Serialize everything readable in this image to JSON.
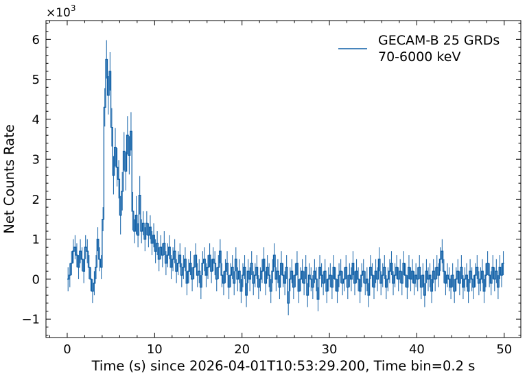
{
  "chart_data": {
    "type": "line",
    "style": "step-with-errorbars",
    "xlabel": "Time (s) since 2026-04-01T10:53:29.200, Time bin=0.2 s",
    "ylabel": "Net Counts Rate",
    "y_multiplier_label": "×10",
    "y_multiplier_exponent": "3",
    "xlim": [
      -2.43,
      51.9
    ],
    "ylim": [
      -1.46,
      6.47
    ],
    "xticks": [
      0,
      10,
      20,
      30,
      40,
      50
    ],
    "xtick_labels": [
      "0",
      "10",
      "20",
      "30",
      "40",
      "50"
    ],
    "yticks": [
      -1,
      0,
      1,
      2,
      3,
      4,
      5,
      6
    ],
    "ytick_labels": [
      "−1",
      "0",
      "1",
      "2",
      "3",
      "4",
      "5",
      "6"
    ],
    "grid": false,
    "legend": {
      "placement": "top-right",
      "entries": [
        {
          "line1": "GECAM-B 25 GRDs",
          "line2": "70-6000 keV"
        }
      ]
    },
    "color": "#0c5da5",
    "bin_width": 0.2,
    "x_start": 0,
    "units_note": "rate values in units of 10^3 counts/s",
    "yerr": 0.3,
    "series": [
      {
        "name": "GECAM-B 25 GRDs 70-6000 keV",
        "values": [
          0.0,
          0.1,
          0.4,
          0.7,
          0.8,
          0.6,
          0.3,
          0.7,
          0.5,
          0.2,
          0.8,
          0.7,
          0.3,
          0.0,
          -0.3,
          -0.1,
          0.3,
          1.0,
          0.5,
          0.3,
          1.5,
          4.3,
          5.5,
          4.6,
          5.2,
          3.8,
          2.6,
          3.3,
          2.8,
          2.5,
          1.6,
          2.2,
          3.2,
          2.7,
          3.6,
          3.1,
          3.7,
          1.7,
          1.2,
          1.6,
          1.1,
          2.1,
          1.2,
          1.4,
          1.0,
          1.4,
          1.1,
          1.3,
          0.9,
          1.1,
          0.7,
          0.9,
          0.5,
          0.8,
          0.6,
          0.9,
          0.4,
          0.6,
          0.8,
          0.3,
          0.5,
          0.7,
          0.2,
          0.4,
          0.6,
          0.1,
          0.3,
          0.5,
          -0.1,
          0.2,
          0.4,
          0.0,
          0.3,
          0.6,
          0.1,
          0.2,
          -0.2,
          0.4,
          0.5,
          0.1,
          0.3,
          0.6,
          0.2,
          0.5,
          0.4,
          0.0,
          0.3,
          0.7,
          0.1,
          -0.1,
          0.2,
          0.4,
          -0.2,
          0.1,
          0.3,
          -0.1,
          0.5,
          0.0,
          0.2,
          -0.3,
          0.1,
          0.3,
          -0.4,
          0.2,
          0.0,
          0.4,
          -0.1,
          0.1,
          0.3,
          -0.2,
          0.0,
          0.2,
          0.5,
          -0.1,
          0.3,
          0.1,
          -0.3,
          0.2,
          0.6,
          0.0,
          0.2,
          -0.2,
          0.4,
          0.1,
          -0.1,
          0.3,
          -0.6,
          0.0,
          0.2,
          -0.2,
          0.1,
          0.4,
          -0.3,
          0.0,
          0.2,
          -0.1,
          0.3,
          -0.4,
          0.1,
          0.0,
          -0.2,
          0.2,
          0.0,
          -0.5,
          0.3,
          0.1,
          -0.1,
          0.2,
          -0.3,
          0.0,
          0.1,
          -0.2,
          0.3,
          0.0,
          -0.3,
          0.1,
          0.2,
          -0.1,
          0.0,
          0.3,
          -0.2,
          0.1,
          0.0,
          0.4,
          -0.1,
          0.2,
          0.0,
          -0.3,
          0.1,
          0.2,
          -0.1,
          0.0,
          -0.4,
          0.3,
          0.1,
          -0.2,
          0.2,
          0.0,
          0.5,
          -0.1,
          0.1,
          0.3,
          -0.2,
          0.0,
          0.2,
          0.4,
          -0.1,
          0.1,
          0.3,
          0.0,
          0.2,
          -0.1,
          0.4,
          0.1,
          -0.2,
          0.3,
          0.0,
          0.2,
          -0.1,
          0.1,
          0.0,
          0.3,
          -0.2,
          0.1,
          -0.4,
          0.2,
          0.0,
          0.1,
          -0.3,
          0.2,
          0.0,
          0.3,
          0.1,
          0.5,
          0.7,
          0.2,
          -0.1,
          0.1,
          0.0,
          -0.2,
          0.1,
          -0.3,
          0.0,
          0.2,
          -0.1,
          0.3,
          -0.2,
          0.0,
          0.1,
          -0.3,
          0.2,
          0.0,
          -0.2,
          0.1,
          0.3,
          -0.1,
          0.0,
          0.2,
          -0.3,
          0.1,
          0.4,
          0.1,
          -0.1,
          0.3,
          0.0,
          0.2,
          -0.2,
          0.3,
          0.1,
          0.4
        ]
      }
    ]
  }
}
